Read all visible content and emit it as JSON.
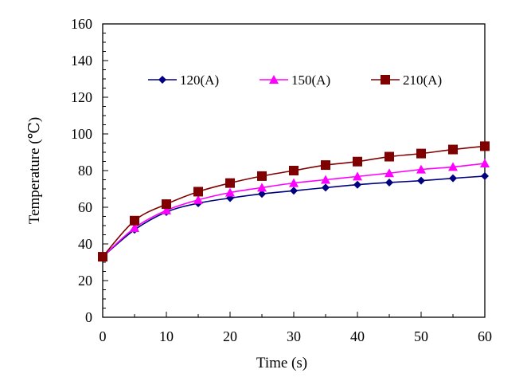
{
  "chart_data": {
    "type": "line",
    "title": "",
    "xlabel": "Time (s)",
    "ylabel": "Temperature (℃)",
    "xlim": [
      0,
      60
    ],
    "ylim": [
      0,
      160
    ],
    "xticks": [
      0,
      10,
      20,
      30,
      40,
      50,
      60
    ],
    "yticks": [
      0,
      20,
      40,
      60,
      80,
      100,
      120,
      140,
      160
    ],
    "grid": false,
    "legend_placement": "top-center",
    "x": [
      0,
      5,
      10,
      15,
      20,
      25,
      30,
      35,
      40,
      45,
      50,
      55,
      60
    ],
    "series": [
      {
        "name": "120(A)",
        "color": "#000080",
        "marker": "diamond",
        "values": [
          33,
          47.7,
          57.4,
          62.2,
          65,
          67.3,
          69,
          70.7,
          72.3,
          73.5,
          74.5,
          75.8,
          77
        ]
      },
      {
        "name": "150(A)",
        "color": "#FF00FF",
        "marker": "triangle",
        "values": [
          33,
          48.7,
          58.3,
          64,
          68,
          70.7,
          73.2,
          75,
          76.8,
          78.6,
          80.6,
          82,
          83.9
        ]
      },
      {
        "name": "210(A)",
        "color": "#800000",
        "marker": "square",
        "values": [
          33,
          52.7,
          61.7,
          68.5,
          73.2,
          77,
          80,
          83,
          84.9,
          87.6,
          89.3,
          91.5,
          93.3
        ]
      }
    ]
  }
}
